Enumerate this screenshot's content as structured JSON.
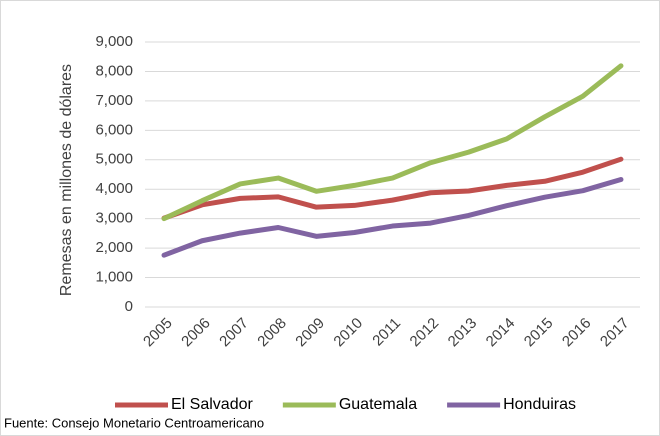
{
  "chart_data": {
    "type": "line",
    "y_label": "Remesas en millones de dólares",
    "source": "Fuente: Consejo Monetario Centroamericano",
    "categories": [
      "2005",
      "2006",
      "2007",
      "2008",
      "2009",
      "2010",
      "2011",
      "2012",
      "2013",
      "2014",
      "2015",
      "2016",
      "2017"
    ],
    "series": [
      {
        "name": "El Salvador",
        "color": "#c0504d",
        "values": [
          3020,
          3470,
          3690,
          3740,
          3390,
          3450,
          3630,
          3880,
          3940,
          4130,
          4270,
          4580,
          5020
        ]
      },
      {
        "name": "Guatemala",
        "color": "#9bbb59",
        "values": [
          3000,
          3610,
          4180,
          4380,
          3930,
          4130,
          4380,
          4900,
          5260,
          5710,
          6460,
          7160,
          8190
        ]
      },
      {
        "name": "Honduiras",
        "color": "#8064a2",
        "values": [
          1760,
          2250,
          2510,
          2700,
          2400,
          2530,
          2750,
          2850,
          3110,
          3440,
          3730,
          3950,
          4330
        ]
      }
    ],
    "ylim": [
      0,
      9000
    ],
    "yticks": [
      0,
      {
        "value": 1000,
        "label": "1,000"
      },
      {
        "value": 2000,
        "label": "2,000"
      },
      {
        "value": 3000,
        "label": "3,000"
      },
      {
        "value": 4000,
        "label": "4,000"
      },
      {
        "value": 5000,
        "label": "5,000"
      },
      {
        "value": 6000,
        "label": "6,000"
      },
      {
        "value": 7000,
        "label": "7,000"
      },
      {
        "value": 8000,
        "label": "8,000"
      },
      {
        "value": 9000,
        "label": "9,000"
      }
    ],
    "grid": true,
    "legend": "bottom"
  }
}
